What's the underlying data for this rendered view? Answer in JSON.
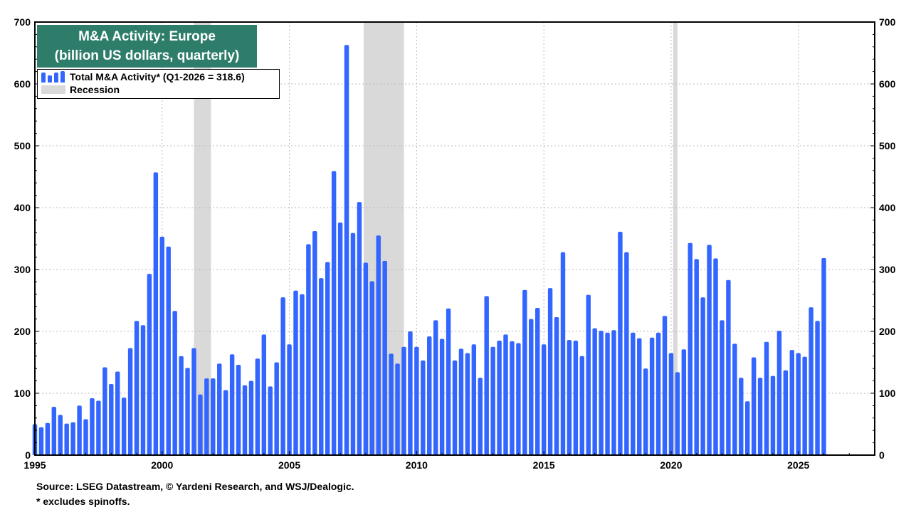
{
  "chart_data": {
    "type": "bar",
    "title": "M&A Activity: Europe",
    "subtitle": "(billion US dollars, quarterly)",
    "series": [
      {
        "name": "Total M&A Activity* (Q1-2026 = 318.6)",
        "color": "#3366ff",
        "start_year": 1995,
        "start_quarter": 1,
        "values": [
          50,
          45,
          52,
          78,
          65,
          51,
          53,
          80,
          58,
          92,
          88,
          142,
          115,
          135,
          93,
          173,
          217,
          210,
          293,
          457,
          353,
          337,
          233,
          160,
          141,
          173,
          98,
          124,
          124,
          148,
          105,
          163,
          146,
          113,
          120,
          156,
          195,
          111,
          150,
          255,
          179,
          266,
          260,
          341,
          362,
          286,
          312,
          459,
          376,
          663,
          359,
          409,
          311,
          281,
          355,
          314,
          164,
          148,
          175,
          200,
          175,
          153,
          192,
          218,
          188,
          237,
          153,
          172,
          165,
          179,
          125,
          257,
          175,
          185,
          195,
          184,
          181,
          267,
          220,
          238,
          179,
          270,
          223,
          328,
          186,
          185,
          160,
          259,
          205,
          201,
          198,
          202,
          361,
          328,
          198,
          189,
          140,
          190,
          198,
          225,
          165,
          134,
          171,
          343,
          317,
          255,
          340,
          318,
          218,
          283,
          180,
          125,
          87,
          158,
          125,
          183,
          128,
          201,
          137,
          170,
          165,
          159,
          239,
          217,
          318.6
        ]
      }
    ],
    "recession_label": "Recession",
    "recessions": [
      [
        2001.25,
        2001.92
      ],
      [
        2007.92,
        2009.5
      ],
      [
        2020.08,
        2020.25
      ]
    ],
    "x_ticks": [
      "1995",
      "2000",
      "2005",
      "2010",
      "2015",
      "2020",
      "2025"
    ],
    "xlim": [
      1995,
      2028
    ],
    "y_ticks": [
      "0",
      "100",
      "200",
      "300",
      "400",
      "500",
      "600",
      "700"
    ],
    "ylim": [
      0,
      700
    ],
    "grid": true,
    "legend_position": "top-left",
    "source": "Source: LSEG Datastream, © Yardeni Research, and WSJ/Dealogic.",
    "footnote": "* excludes spinoffs."
  }
}
